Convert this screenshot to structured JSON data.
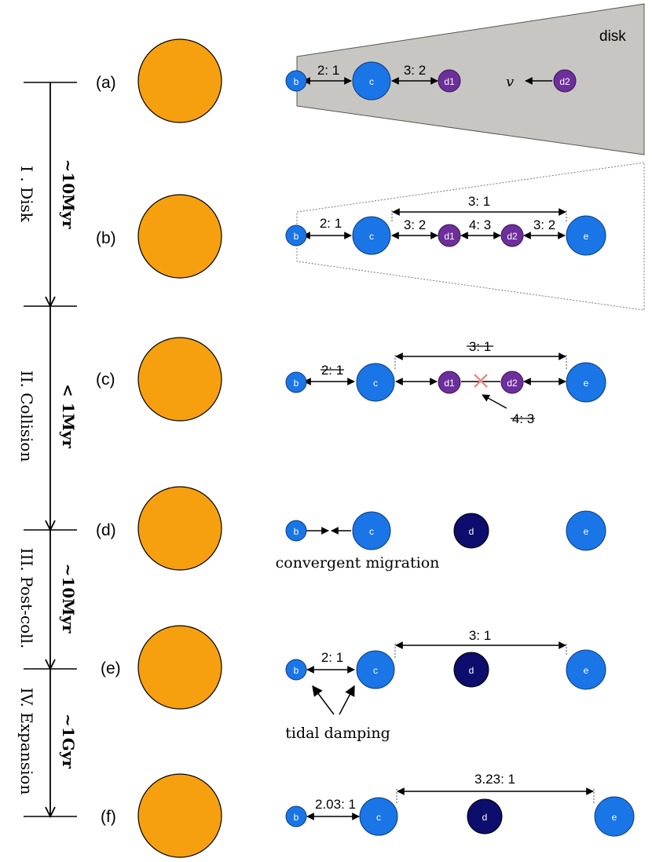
{
  "colors": {
    "star": "#f6a00f",
    "planet_blue": "#1a75e6",
    "planet_purple": "#6d2f9c",
    "planet_navy": "#0d0d6e",
    "disk_fill": "#c8c6c3",
    "cross": "#f08a80"
  },
  "disk_label": "disk",
  "velocity_symbol": "v",
  "stage_letters": [
    "(a)",
    "(b)",
    "(c)",
    "(d)",
    "(e)",
    "(f)"
  ],
  "phases": [
    {
      "name": "I . Disk",
      "duration": "~10Myr"
    },
    {
      "name": "II. Collision",
      "duration": "< 1Myr"
    },
    {
      "name": "III. Post-coll.",
      "duration": "~10Myr"
    },
    {
      "name": "IV. Expansion",
      "duration": "~1Gyr"
    }
  ],
  "planet_labels": {
    "b": "b",
    "c": "c",
    "d": "d",
    "d1": "d1",
    "d2": "d2",
    "e": "e"
  },
  "resonances": {
    "a": {
      "bc": "2: 1",
      "cd1": "3: 2"
    },
    "b": {
      "bc": "2: 1",
      "cd1": "3: 2",
      "d1d2": "4: 3",
      "d2e": "3: 2",
      "ce": "3: 1"
    },
    "c": {
      "bc": "2: 1",
      "ce": "3: 1",
      "d1d2": "4: 3"
    },
    "e": {
      "bc": "2: 1",
      "ce": "3: 1"
    },
    "f": {
      "bc": "2.03: 1",
      "ce": "3.23: 1"
    }
  },
  "annotations": {
    "convergent_migration": "convergent migration",
    "tidal_damping": "tidal damping"
  }
}
